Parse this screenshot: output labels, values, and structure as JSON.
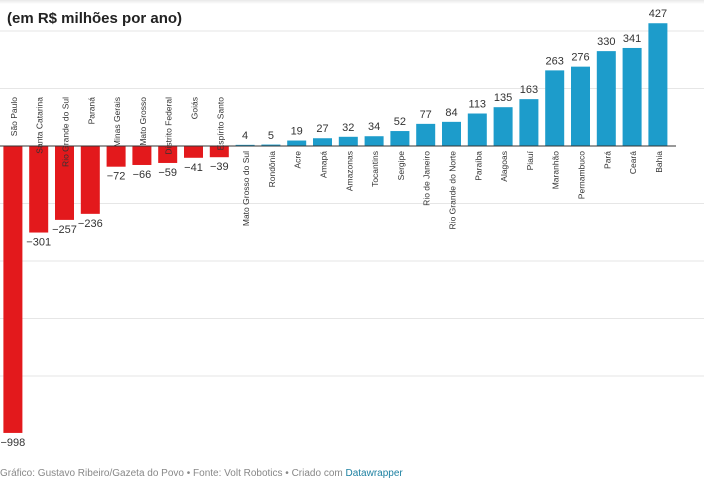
{
  "header": {
    "title": "(em R$ milhões por ano)"
  },
  "footer": {
    "credit": "Gráfico: Gustavo Ribeiro/Gazeta do Povo • Fonte: Volt Robotics • Criado com ",
    "tool_link": "Datawrapper"
  },
  "colors": {
    "negative": "#e3191c",
    "positive": "#1d9ccb",
    "link": "#1d81a2"
  },
  "chart_data": {
    "type": "bar",
    "title": "(em R$ milhões por ano)",
    "xlabel": "",
    "ylabel": "",
    "ylim": [
      -1000,
      450
    ],
    "grid": true,
    "categories": [
      "São Paulo",
      "Santa Catarina",
      "Rio Grande do Sul",
      "Paraná",
      "Minas Gerais",
      "Mato Grosso",
      "Distrito Federal",
      "Goiás",
      "Espírito Santo",
      "Mato Grosso do Sul",
      "Rondônia",
      "Acre",
      "Amapá",
      "Amazonas",
      "Tocantins",
      "Sergipe",
      "Rio de Janeiro",
      "Rio Grande do Norte",
      "Paraíba",
      "Alagoas",
      "Piauí",
      "Maranhão",
      "Pernambuco",
      "Pará",
      "Ceará",
      "Bahia"
    ],
    "values": [
      -998,
      -301,
      -257,
      -236,
      -72,
      -66,
      -59,
      -41,
      -39,
      4,
      5,
      19,
      27,
      32,
      34,
      52,
      77,
      84,
      113,
      135,
      163,
      263,
      276,
      330,
      341,
      427
    ],
    "labels": [
      "−998",
      "−301",
      "−257",
      "−236",
      "−72",
      "−66",
      "−59",
      "−41",
      "−39",
      "4",
      "5",
      "19",
      "27",
      "32",
      "34",
      "52",
      "77",
      "84",
      "113",
      "135",
      "163",
      "263",
      "276",
      "330",
      "341",
      "427"
    ]
  }
}
